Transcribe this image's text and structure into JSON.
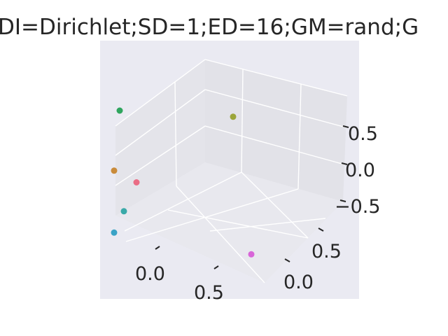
{
  "chart_data": {
    "type": "scatter3d",
    "title": "DI=Dirichlet;SD=1;ED=16;GM=rand;G",
    "xlabel": "",
    "ylabel": "",
    "zlabel": "",
    "x_ticks": [
      "0.0",
      "0.5"
    ],
    "y_ticks": [
      "0.0",
      "0.5"
    ],
    "z_ticks": [
      "0.5",
      "0.0",
      "−0.5"
    ],
    "grid": true,
    "background": "#eaeaf2",
    "points": [
      {
        "x": -0.25,
        "y": 0.0,
        "z": 0.75,
        "color": "#2fa55e"
      },
      {
        "x": 0.35,
        "y": 0.55,
        "z": 0.6,
        "color": "#9ba53a"
      },
      {
        "x": -0.3,
        "y": 0.0,
        "z": 0.0,
        "color": "#c98b3a"
      },
      {
        "x": -0.1,
        "y": 0.0,
        "z": -0.05,
        "color": "#ea6d85"
      },
      {
        "x": -0.25,
        "y": 0.05,
        "z": -0.5,
        "color": "#39a9a8"
      },
      {
        "x": -0.3,
        "y": 0.0,
        "z": -0.75,
        "color": "#3aa3c6"
      },
      {
        "x": 0.85,
        "y": 0.1,
        "z": -0.55,
        "color": "#d865d8"
      }
    ]
  }
}
